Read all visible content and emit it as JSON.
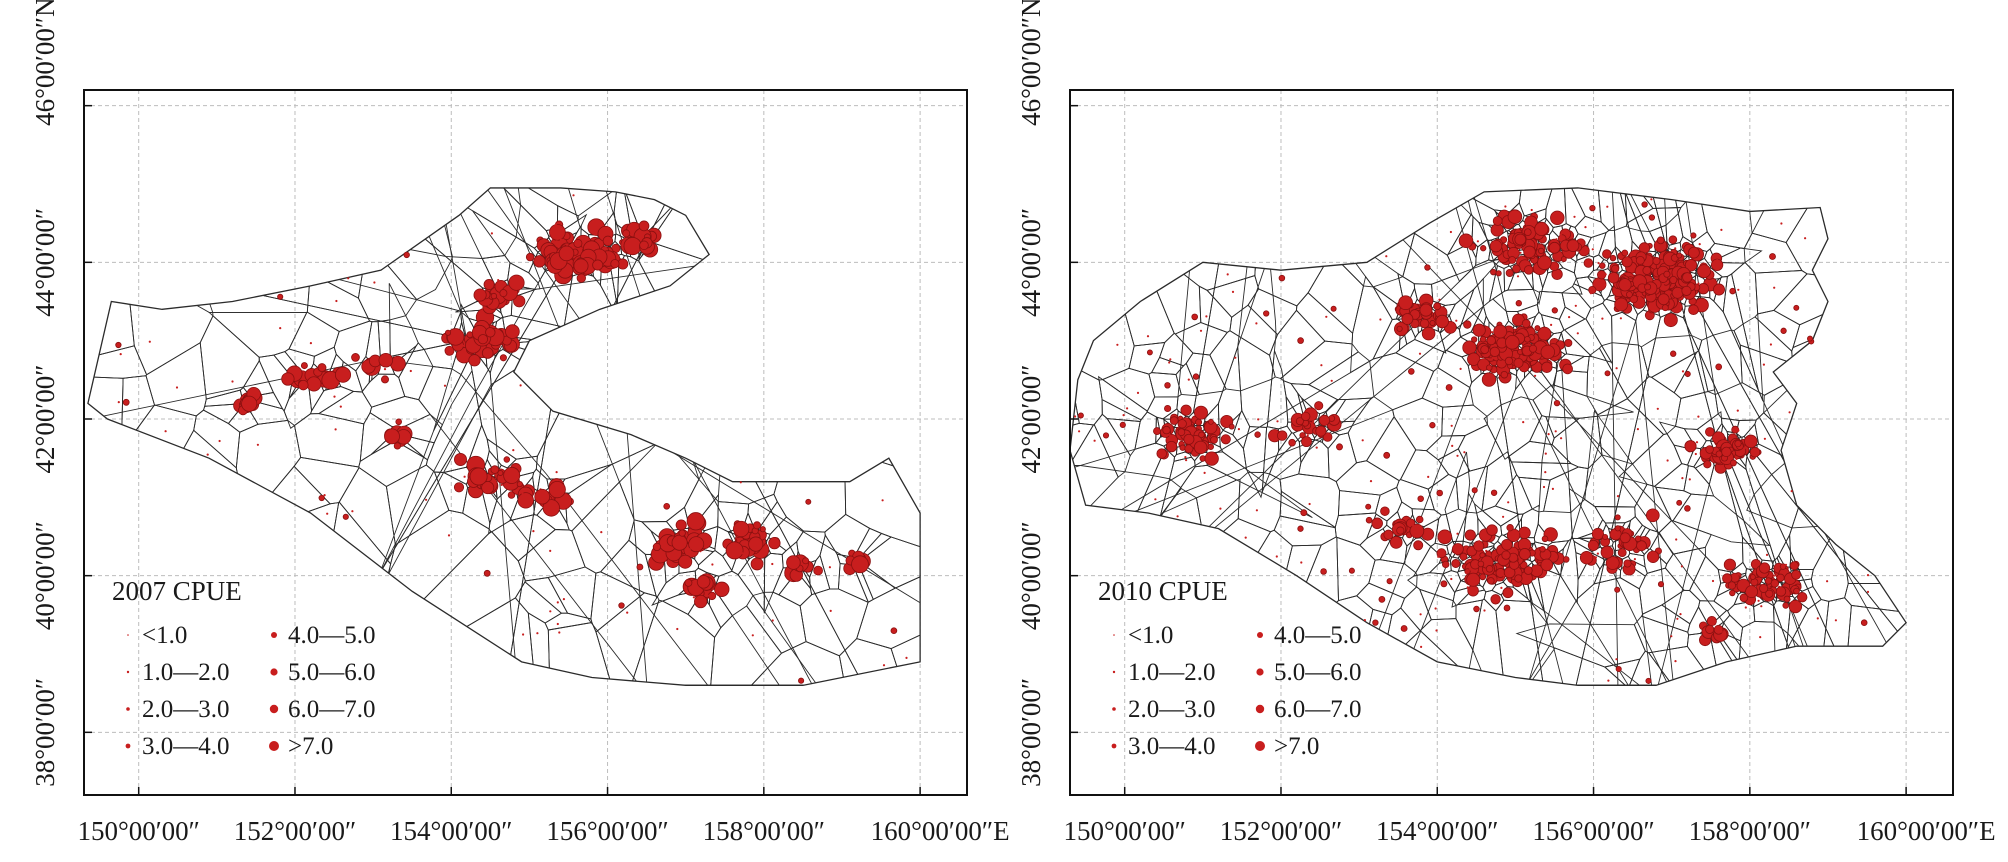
{
  "maps": [
    {
      "id": "map-2007",
      "legend_title": "2007 CPUE",
      "x_ticks": [
        "150°00′00″",
        "152°00′00″",
        "154°00′00″",
        "156°00′00″",
        "158°00′00″",
        "160°00′00″E"
      ],
      "y_ticks": [
        "38°00′00″",
        "40°00′00″",
        "42°00′00″",
        "44°00′00″",
        "46°00′00″N"
      ],
      "legend_classes": [
        "<1.0",
        "1.0—2.0",
        "2.0—3.0",
        "3.0—4.0",
        "4.0—5.0",
        "5.0—6.0",
        "6.0—7.0",
        ">7.0"
      ]
    },
    {
      "id": "map-2010",
      "legend_title": "2010 CPUE",
      "x_ticks": [
        "150°00′00″",
        "152°00′00″",
        "154°00′00″",
        "156°00′00″",
        "158°00′00″",
        "160°00′00″E"
      ],
      "y_ticks": [
        "38°00′00″",
        "40°00′00″",
        "42°00′00″",
        "44°00′00″",
        "46°00′00″N"
      ],
      "legend_classes": [
        "<1.0",
        "1.0—2.0",
        "2.0—3.0",
        "3.0—4.0",
        "4.0—5.0",
        "5.0—6.0",
        "6.0—7.0",
        ">7.0"
      ]
    }
  ],
  "map_extent": {
    "lon": [
      149.3,
      160.6
    ],
    "lat": [
      37.2,
      46.2
    ]
  },
  "colors": {
    "point": "#c81e1e",
    "point_stroke": "#8a1010",
    "cell_line": "#2b2b2b",
    "grid": "#bdbdbd",
    "frame": "#111111"
  }
}
